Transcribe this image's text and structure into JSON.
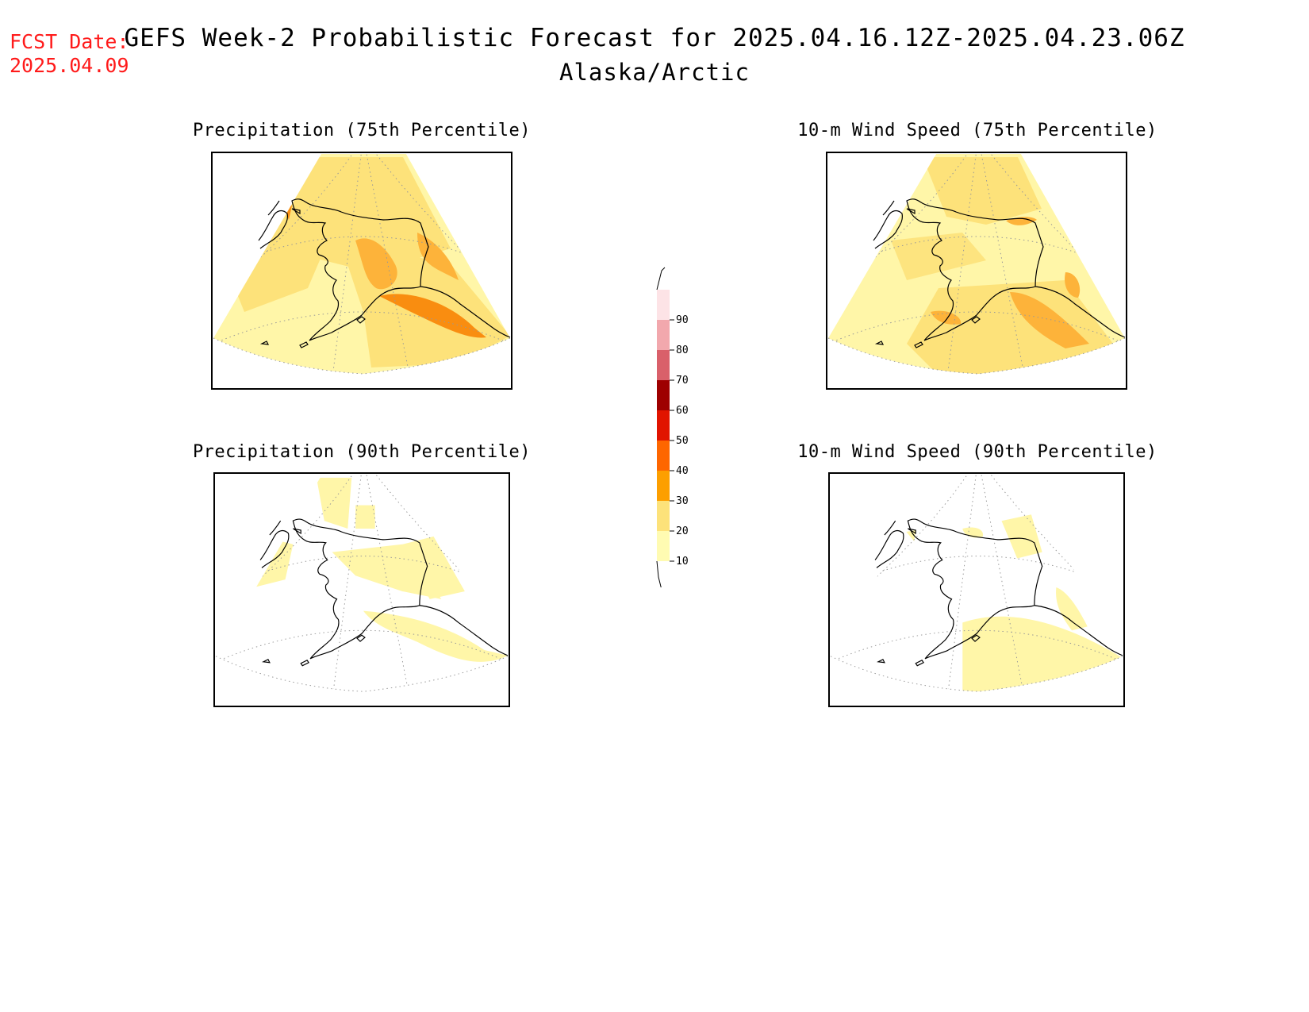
{
  "fcst_label": "FCST Date:",
  "fcst_date": "2025.04.09",
  "title": "GEFS Week-2 Probabilistic Forecast for 2025.04.16.12Z-2025.04.23.06Z",
  "subtitle": "Alaska/Arctic",
  "panels": [
    {
      "title": "Precipitation (75th Percentile)"
    },
    {
      "title": "10-m Wind Speed (75th Percentile)"
    },
    {
      "title": "Precipitation (90th Percentile)"
    },
    {
      "title": "10-m Wind Speed (90th Percentile)"
    }
  ],
  "legend": {
    "levels": [
      10,
      20,
      30,
      40,
      50,
      60,
      70,
      80,
      90
    ],
    "colors": [
      "#fffbb2",
      "#fde27a",
      "#fd9f00",
      "#fe6600",
      "#e11400",
      "#9e0000",
      "#d9606a",
      "#f2a8ad",
      "#fde3e6"
    ]
  },
  "palette": {
    "p10": "#fff6a8",
    "p20": "#fde27a",
    "p30": "#fdb33a",
    "p40": "#f98d10",
    "coast": "#000000",
    "grid": "#999999"
  }
}
